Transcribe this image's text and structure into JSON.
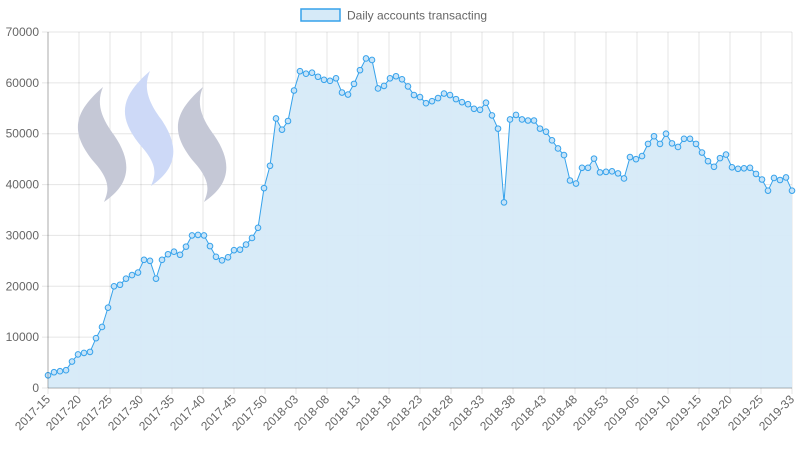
{
  "chart_data": {
    "type": "line",
    "title": "",
    "xlabel": "",
    "ylabel": "",
    "ylim": [
      0,
      70000
    ],
    "y_ticks": [
      0,
      10000,
      20000,
      30000,
      40000,
      50000,
      60000,
      70000
    ],
    "grid": true,
    "legend_position": "top-center",
    "x_tick_labels": [
      "2017-15",
      "2017-20",
      "2017-25",
      "2017-30",
      "2017-35",
      "2017-40",
      "2017-45",
      "2017-50",
      "2018-03",
      "2018-08",
      "2018-13",
      "2018-18",
      "2018-23",
      "2018-28",
      "2018-33",
      "2018-38",
      "2018-43",
      "2018-48",
      "2018-53",
      "2019-05",
      "2019-10",
      "2019-15",
      "2019-20",
      "2019-25",
      "2019-33"
    ],
    "series": [
      {
        "name": "Daily accounts transacting",
        "line_color": "#36a2eb",
        "fill_color": "#d6eaf8",
        "values": [
          2500,
          3100,
          3300,
          3500,
          5200,
          6600,
          6900,
          7100,
          9800,
          12000,
          15800,
          20000,
          20300,
          21500,
          22200,
          22700,
          25200,
          25000,
          21500,
          25200,
          26300,
          26800,
          26200,
          27800,
          30000,
          30100,
          30000,
          27900,
          25800,
          25100,
          25700,
          27100,
          27200,
          28200,
          29500,
          31500,
          39300,
          43700,
          53000,
          50800,
          52500,
          58500,
          62300,
          61800,
          62000,
          61200,
          60600,
          60400,
          60900,
          58100,
          57700,
          59800,
          62500,
          64800,
          64500,
          58900,
          59400,
          60900,
          61300,
          60700,
          59300,
          57600,
          57200,
          56000,
          56400,
          57000,
          57900,
          57600,
          56800,
          56200,
          55800,
          54900,
          54700,
          56100,
          53600,
          51000,
          36500,
          52800,
          53700,
          52800,
          52600,
          52600,
          51000,
          50400,
          48700,
          47100,
          45800,
          40800,
          40200,
          43300,
          43300,
          45100,
          42400,
          42500,
          42600,
          42200,
          41200,
          45400,
          45000,
          45600,
          48000,
          49500,
          48000,
          50000,
          48100,
          47400,
          49000,
          49000,
          48000,
          46300,
          44600,
          43500,
          45200,
          45900,
          43400,
          43100,
          43200,
          43300,
          42100,
          41000,
          38800,
          41300,
          40900,
          41400,
          38800
        ]
      }
    ],
    "watermark": {
      "icon": "steem-logo-icon",
      "colors": [
        "#c5c8d6",
        "#cdd9f7",
        "#c5c8d6"
      ]
    }
  }
}
